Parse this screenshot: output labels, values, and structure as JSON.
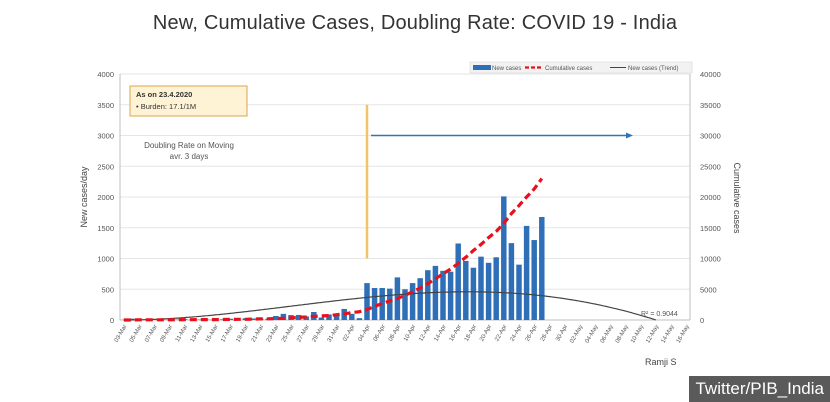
{
  "colors": {
    "bars": "#2e6fb7",
    "cumulative": "#e8101a",
    "trend": "#444444",
    "vline": "#f2c46a",
    "arrow": "#2e75b6",
    "annotation_bg": "#fff3d6",
    "annotation_border": "#d9a64a"
  },
  "watermark": "Twitter/PIB_India",
  "chart_data": {
    "type": "bar",
    "title": "New, Cumulative Cases, Doubling Rate: COVID 19 - India",
    "ylabel": "New cases/day",
    "y2label": "Cumulative cases",
    "ylim": [
      0,
      4000
    ],
    "y2lim": [
      0,
      40000
    ],
    "yticks": [
      0,
      500,
      1000,
      1500,
      2000,
      2500,
      3000,
      3500,
      4000
    ],
    "y2ticks": [
      0,
      5000,
      10000,
      15000,
      20000,
      25000,
      30000,
      35000,
      40000
    ],
    "legend": {
      "position": "top-right",
      "entries": [
        "New cases",
        "Cumulative cases",
        "New cases (Trend)"
      ]
    },
    "annotation_box": {
      "title": "As on 23.4.2020",
      "line": "• Burden: 17.1/1M"
    },
    "doubling_note": [
      "Doubling Rate on Moving",
      "avr. 3 days"
    ],
    "r_squared": "R² = 0.9044",
    "credit": "Ramji S",
    "xticks": [
      "03-Mar",
      "05-Mar",
      "07-Mar",
      "09-Mar",
      "11-Mar",
      "13-Mar",
      "15-Mar",
      "17-Mar",
      "19-Mar",
      "21-Mar",
      "23-Mar",
      "25-Mar",
      "27-Mar",
      "29-Mar",
      "31-Mar",
      "02-Apr",
      "04-Apr",
      "06-Apr",
      "08-Apr",
      "10-Apr",
      "12-Apr",
      "14-Apr",
      "16-Apr",
      "18-Apr",
      "20-Apr",
      "22-Apr",
      "24-Apr",
      "26-Apr",
      "28-Apr",
      "30-Apr",
      "02-May",
      "04-May",
      "06-May",
      "08-May",
      "10-May",
      "12-May",
      "14-May",
      "16-May"
    ],
    "x_start": "03-Mar",
    "x_days": 75,
    "vline_day": 32,
    "arrow_day_range": [
      32,
      67
    ],
    "arrow_value": 3000,
    "series": [
      {
        "name": "New cases",
        "kind": "bar",
        "axis": "left",
        "start_day": 0,
        "values": [
          2,
          22,
          1,
          3,
          1,
          1,
          0,
          6,
          13,
          6,
          6,
          5,
          13,
          10,
          20,
          18,
          28,
          25,
          24,
          20,
          65,
          100,
          80,
          82,
          58,
          130,
          40,
          90,
          90,
          180,
          100,
          30,
          600,
          520,
          520,
          510,
          693,
          500,
          600,
          680,
          810,
          880,
          800,
          785,
          1244,
          960,
          850,
          1030,
          930,
          1020,
          2010,
          1250,
          900,
          1530,
          1300,
          1675
        ]
      },
      {
        "name": "Cumulative cases",
        "kind": "line",
        "axis": "right",
        "start_day": 0,
        "values": [
          5,
          5,
          30,
          31,
          32,
          33,
          35,
          40,
          46,
          54,
          60,
          66,
          72,
          85,
          98,
          110,
          120,
          140,
          175,
          200,
          230,
          270,
          340,
          420,
          490,
          580,
          660,
          720,
          860,
          1000,
          1200,
          1350,
          1700,
          2200,
          2700,
          3100,
          3500,
          4000,
          4600,
          5200,
          5900,
          6700,
          7500,
          8300,
          9200,
          10200,
          11300,
          12300,
          13400,
          14400,
          15700,
          17300,
          18600,
          20000,
          21300,
          23000
        ]
      },
      {
        "name": "New cases (Trend)",
        "kind": "polynomial",
        "axis": "left",
        "coefficients": [
          0,
          0,
          0.7,
          -0.0106,
          -1.06e-05,
          2.745e-07
        ],
        "domain": [
          0,
          75
        ]
      }
    ]
  }
}
